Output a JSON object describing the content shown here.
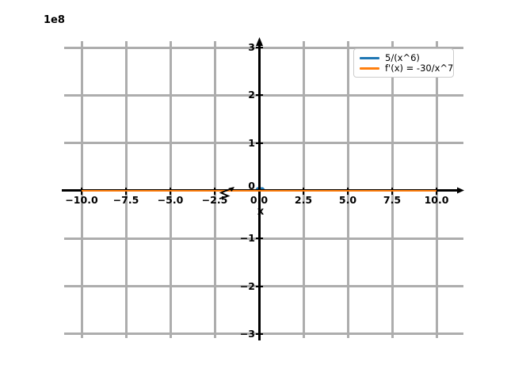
{
  "figure": {
    "offset_label": "1e8",
    "background": "#ffffff",
    "grid_color": "#adadad",
    "axis_color": "#000000"
  },
  "legend": {
    "position": "upper right",
    "entries": [
      {
        "label": "5/(x^6)",
        "color": "#1f77b4"
      },
      {
        "label": "f'(x) = -30/x^7",
        "color": "#ff7f0e"
      }
    ]
  },
  "chart_data": {
    "type": "line",
    "title": "",
    "xlabel": "x",
    "ylabel": "",
    "y_offset_multiplier": "1e8",
    "xlim": [
      -11.1,
      11.5
    ],
    "ylim": [
      -300000000,
      300000000
    ],
    "grid": true,
    "legend_position": "upper right",
    "x_ticks": {
      "values": [
        -10,
        -7.5,
        -5,
        -2.5,
        0,
        2.5,
        5,
        7.5,
        10
      ],
      "labels": [
        "−10.0",
        "−7.5",
        "−5.0",
        "−2.5",
        "0.0",
        "2.5",
        "5.0",
        "7.5",
        "10.0"
      ]
    },
    "y_ticks": {
      "values": [
        -3,
        -2,
        -1,
        0,
        1,
        2,
        3
      ],
      "labels": [
        "−3",
        "−2",
        "−1",
        "0",
        "1",
        "2",
        "3"
      ],
      "scale": 100000000
    },
    "series": [
      {
        "name": "5/(x^6)",
        "color": "#1f77b4",
        "x": [
          -10,
          -5,
          -2.5,
          -1,
          -0.5,
          -0.25,
          -0.1,
          0.1,
          0.25,
          0.5,
          1,
          2.5,
          5,
          10
        ],
        "y": [
          5e-06,
          0.00032,
          0.0205,
          5,
          320,
          20480,
          5000000,
          5000000,
          20480,
          320,
          5,
          0.0205,
          0.00032,
          5e-06
        ]
      },
      {
        "name": "f'(x) = -30/x^7",
        "color": "#ff7f0e",
        "x": [
          -10,
          -5,
          -2.5,
          -1,
          -0.5,
          -0.1,
          0.1,
          0.5,
          1,
          2.5,
          5,
          10
        ],
        "y": [
          3e-06,
          0.000384,
          0.049,
          30,
          3840,
          300000000,
          -300000000,
          -3840,
          -30,
          -0.049,
          -0.000384,
          -3e-06
        ]
      }
    ]
  }
}
